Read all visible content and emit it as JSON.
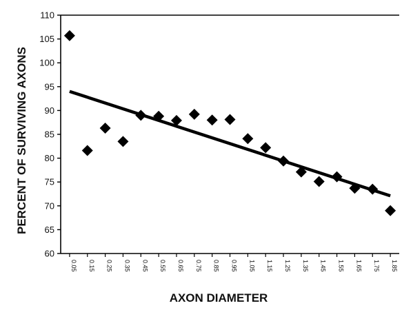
{
  "chart_data": {
    "type": "scatter",
    "title": "",
    "xlabel": "AXON DIAMETER",
    "ylabel": "PERCENT OF SURVIVING AXONS",
    "ylim": [
      60,
      110
    ],
    "y_ticks": [
      "60",
      "65",
      "70",
      "75",
      "80",
      "85",
      "90",
      "95",
      "100",
      "105",
      "110"
    ],
    "categories": [
      "0.05",
      "0.15",
      "0.25",
      "0.35",
      "0.45",
      "0.55",
      "0.65",
      "0.75",
      "0.85",
      "0.95",
      "1.05",
      "1.15",
      "1.25",
      "1.35",
      "1.45",
      "1.55",
      "1.65",
      "1.75",
      "1.85"
    ],
    "series": [
      {
        "marker": "diamond",
        "color": "#000000",
        "x": [
          0.05,
          0.15,
          0.25,
          0.35,
          0.45,
          0.55,
          0.65,
          0.75,
          0.85,
          0.95,
          1.05,
          1.15,
          1.25,
          1.35,
          1.45,
          1.55,
          1.65,
          1.75,
          1.85
        ],
        "values": [
          105.7,
          81.6,
          86.3,
          83.5,
          89.0,
          88.8,
          87.9,
          89.2,
          88.0,
          88.1,
          84.1,
          82.2,
          79.4,
          77.1,
          75.1,
          76.1,
          73.7,
          73.5,
          69.0
        ]
      }
    ],
    "trendline": {
      "x": [
        0.05,
        1.85
      ],
      "y": [
        94.0,
        72.1
      ],
      "color": "#000000"
    },
    "grid": false,
    "legend": "none"
  }
}
